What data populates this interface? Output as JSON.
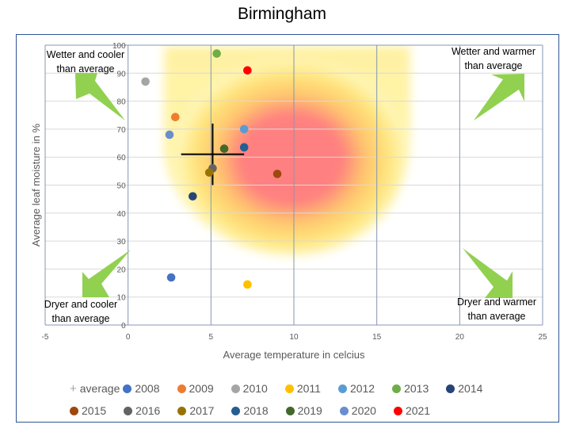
{
  "chart_data": {
    "type": "scatter",
    "title": "Birmingham",
    "xlabel": "Average temperature in celcius",
    "ylabel": "Average leaf moisture in %",
    "xlim": [
      -5,
      25
    ],
    "ylim": [
      0,
      100
    ],
    "xticks": [
      -5,
      0,
      5,
      10,
      15,
      20,
      25
    ],
    "yticks": [
      0,
      10,
      20,
      30,
      40,
      50,
      60,
      70,
      80,
      90,
      100
    ],
    "grid": true,
    "legend_position": "bottom",
    "average": {
      "name": "average",
      "x": 5.1,
      "y": 61,
      "x_error": 1.9,
      "y_error": 11
    },
    "series": [
      {
        "name": "2008",
        "color": "#4472C4",
        "x": 2.6,
        "y": 17
      },
      {
        "name": "2009",
        "color": "#ED7D31",
        "x": 2.85,
        "y": 74.3
      },
      {
        "name": "2010",
        "color": "#A5A5A5",
        "x": 1.05,
        "y": 87
      },
      {
        "name": "2011",
        "color": "#FFC000",
        "x": 7.2,
        "y": 14.5
      },
      {
        "name": "2012",
        "color": "#5B9BD5",
        "x": 7.0,
        "y": 70
      },
      {
        "name": "2013",
        "color": "#70AD47",
        "x": 5.35,
        "y": 97
      },
      {
        "name": "2014",
        "color": "#264478",
        "x": 3.9,
        "y": 46
      },
      {
        "name": "2015",
        "color": "#9E480E",
        "x": 9.0,
        "y": 54
      },
      {
        "name": "2016",
        "color": "#636363",
        "x": 5.1,
        "y": 56
      },
      {
        "name": "2017",
        "color": "#997300",
        "x": 4.9,
        "y": 54.5
      },
      {
        "name": "2018",
        "color": "#255E91",
        "x": 7.0,
        "y": 63.5
      },
      {
        "name": "2019",
        "color": "#43682B",
        "x": 5.8,
        "y": 63
      },
      {
        "name": "2020",
        "color": "#698ED0",
        "x": 2.5,
        "y": 68
      },
      {
        "name": "2021",
        "color": "#FF0000",
        "x": 7.2,
        "y": 91
      }
    ],
    "annotations": [
      {
        "id": "wetter-cooler",
        "lines": [
          "Wetter and cooler",
          "than average"
        ],
        "position": "top-left"
      },
      {
        "id": "wetter-warmer",
        "lines": [
          "Wetter and warmer",
          "than average"
        ],
        "position": "top-right"
      },
      {
        "id": "dryer-cooler",
        "lines": [
          "Dryer and cooler",
          "than average"
        ],
        "position": "bottom-left"
      },
      {
        "id": "dryer-warmer",
        "lines": [
          "Dryer and warmer",
          "than average"
        ],
        "position": "bottom-right"
      }
    ],
    "arrow_color": "#92D050",
    "heat_colors": {
      "core": "#FF8080",
      "mid": "#FFD966",
      "outer": "#FFF2A0"
    }
  }
}
